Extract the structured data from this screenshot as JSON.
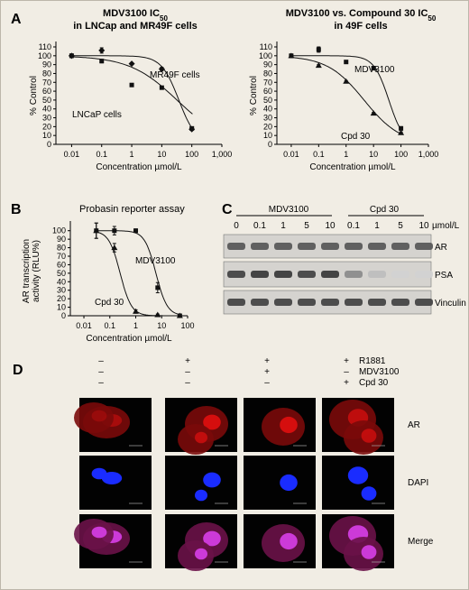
{
  "panel_letters": {
    "a": "A",
    "b": "B",
    "c": "C",
    "d": "D"
  },
  "title_a1": {
    "line1": "MDV3100 IC",
    "sub": "50",
    "line2": "in LNCap and MR49F cells"
  },
  "title_a2": {
    "line1": "MDV3100 vs. Compound 30 IC",
    "sub": "50",
    "line2": "in 49F cells"
  },
  "title_b": "Probasin reporter assay",
  "chart_data": [
    {
      "type": "line",
      "title": "MDV3100 IC50 in LNCap and MR49F cells",
      "xlabel": "Concentration µmol/L",
      "ylabel": "% Control",
      "xscale": "log",
      "xticks": [
        "0.01",
        "0.1",
        "1",
        "10",
        "100",
        "1,000"
      ],
      "yticks": [
        0,
        10,
        20,
        30,
        40,
        50,
        60,
        70,
        80,
        90,
        100,
        110
      ],
      "xlim": [
        0.003,
        1000
      ],
      "ylim": [
        0,
        110
      ],
      "series": [
        {
          "name": "MR49F cells",
          "marker": "diamond",
          "x": [
            0.01,
            0.1,
            1,
            10,
            100
          ],
          "y": [
            100,
            106,
            91,
            85,
            17
          ],
          "err": [
            2,
            3,
            1,
            2,
            1
          ],
          "curve": {
            "top": 100,
            "bottom": 0,
            "ic50": 37,
            "hill": 1.5
          }
        },
        {
          "name": "LNCaP cells",
          "marker": "square",
          "x": [
            0.01,
            0.1,
            1,
            10,
            100
          ],
          "y": [
            100,
            94,
            67,
            64,
            18
          ],
          "err": [
            2,
            2,
            1,
            1,
            1
          ],
          "curve": {
            "top": 100,
            "bottom": 0,
            "ic50": 32,
            "hill": 0.55
          }
        }
      ],
      "annotations": [
        "MR49F cells",
        "LNCaP cells"
      ]
    },
    {
      "type": "line",
      "title": "MDV3100 vs. Compound 30 IC50 in 49F cells",
      "xlabel": "Concentration µmol/L",
      "ylabel": "% Control",
      "xscale": "log",
      "xticks": [
        "0.01",
        "0.1",
        "1",
        "10",
        "100",
        "1,000"
      ],
      "yticks": [
        0,
        10,
        20,
        30,
        40,
        50,
        60,
        70,
        80,
        90,
        100,
        110
      ],
      "xlim": [
        0.003,
        1000
      ],
      "ylim": [
        0,
        110
      ],
      "series": [
        {
          "name": "MDV3100",
          "marker": "square",
          "x": [
            0.01,
            0.1,
            1,
            10,
            100
          ],
          "y": [
            100,
            107,
            93,
            86,
            18
          ],
          "err": [
            2,
            3,
            1,
            2,
            2
          ],
          "curve": {
            "top": 100,
            "bottom": 0,
            "ic50": 36,
            "hill": 1.6
          }
        },
        {
          "name": "Cpd 30",
          "marker": "triangle",
          "x": [
            0.01,
            0.1,
            1,
            10,
            100
          ],
          "y": [
            100,
            89,
            71,
            35,
            13
          ],
          "err": [
            1,
            1,
            1,
            1,
            1
          ],
          "curve": {
            "top": 100,
            "bottom": 0,
            "ic50": 4.5,
            "hill": 0.65
          }
        }
      ],
      "annotations": [
        "MDV3100",
        "Cpd 30"
      ]
    },
    {
      "type": "line",
      "title": "Probasin reporter assay",
      "xlabel": "Concentration µmol/L",
      "ylabel": "AR transcription activity (RLU%)",
      "xscale": "log",
      "xticks": [
        "0.01",
        "0.1",
        "1",
        "10",
        "100"
      ],
      "yticks": [
        0,
        10,
        20,
        30,
        40,
        50,
        60,
        70,
        80,
        90,
        100
      ],
      "xlim": [
        0.003,
        100
      ],
      "ylim": [
        0,
        105
      ],
      "series": [
        {
          "name": "MDV3100",
          "marker": "square",
          "x": [
            0.03,
            0.15,
            1,
            7,
            50
          ],
          "y": [
            100,
            100,
            100,
            33,
            0
          ],
          "err": [
            9,
            5,
            2,
            6,
            2
          ],
          "curve": {
            "top": 100,
            "bottom": 0,
            "ic50": 6.0,
            "hill": 2.0
          }
        },
        {
          "name": "Cpd 30",
          "marker": "triangle",
          "x": [
            0.03,
            0.15,
            1,
            7,
            50
          ],
          "y": [
            100,
            80,
            5,
            1,
            0
          ],
          "err": [
            9,
            5,
            2,
            1,
            1
          ],
          "curve": {
            "top": 100,
            "bottom": 0,
            "ic50": 0.25,
            "hill": 2.0
          }
        }
      ],
      "annotations": [
        "MDV3100",
        "Cpd 30"
      ]
    }
  ],
  "western_blot": {
    "groups": [
      "MDV3100",
      "Cpd 30"
    ],
    "doses": [
      "0",
      "0.1",
      "1",
      "5",
      "10",
      "0.1",
      "1",
      "5",
      "10"
    ],
    "unit": "µmol/L",
    "bands": [
      "AR",
      "PSA",
      "Vinculin"
    ],
    "band_intensity": {
      "AR": [
        0.7,
        0.7,
        0.7,
        0.7,
        0.7,
        0.7,
        0.7,
        0.7,
        0.7
      ],
      "PSA": [
        0.8,
        0.85,
        0.85,
        0.8,
        0.85,
        0.45,
        0.2,
        0.1,
        0.1
      ],
      "Vinculin": [
        0.8,
        0.8,
        0.8,
        0.8,
        0.8,
        0.8,
        0.8,
        0.8,
        0.8
      ]
    }
  },
  "panel_d": {
    "conditions": [
      {
        "name": "R1881",
        "signs": [
          "–",
          "+",
          "+",
          "+"
        ]
      },
      {
        "name": "MDV3100",
        "signs": [
          "–",
          "–",
          "+",
          "–"
        ]
      },
      {
        "name": "Cpd 30",
        "signs": [
          "–",
          "–",
          "–",
          "+"
        ]
      }
    ],
    "rows": [
      "AR",
      "DAPI",
      "Merge"
    ],
    "colors": {
      "AR": "#e01010",
      "DAPI": "#1a2cff",
      "Merge": "#cc3ad8"
    }
  }
}
